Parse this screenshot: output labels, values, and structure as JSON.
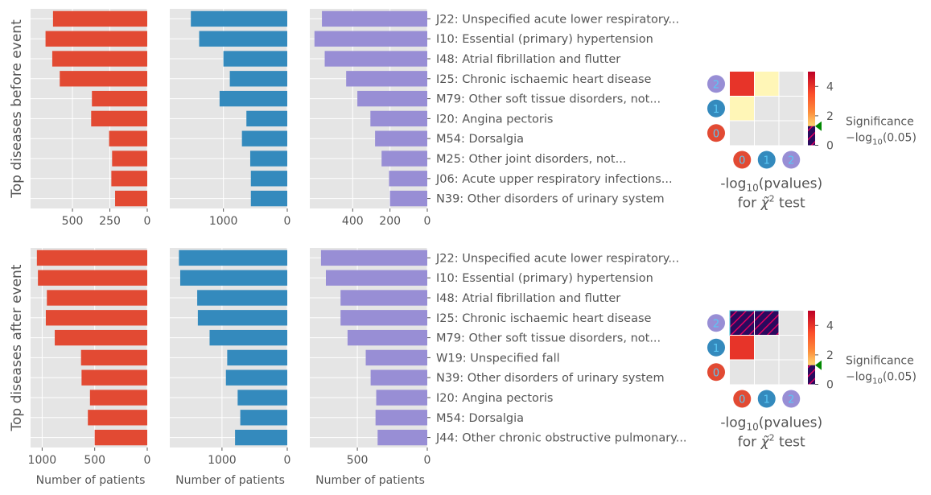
{
  "colors": {
    "cluster_0": "#E24A33",
    "cluster_1": "#348ABD",
    "cluster_2": "#988ED5",
    "panel_bg": "#E5E5E5",
    "grid": "#FFFFFF",
    "text": "#555555",
    "hatch": "#2A0A5E",
    "hatch_line": "#E00060",
    "marker": "#008800"
  },
  "figure": {
    "row_titles": [
      "Top diseases before event",
      "Top diseases after event"
    ],
    "xlabel": "Number of patients",
    "heatmap_title_line1": "-log",
    "heatmap_title_sub": "10",
    "heatmap_title_tail": "(pvalues)",
    "heatmap_title_line2_pre": "for ",
    "heatmap_title_line2_sym": "χ̃",
    "heatmap_title_line2_sup": "2",
    "heatmap_title_line2_post": " test",
    "significance_label": "Significance",
    "significance_formula_pre": "−log",
    "significance_formula_sub": "10",
    "significance_formula_post": "(0.05)"
  },
  "chart_data": [
    {
      "type": "bar",
      "orientation": "horizontal",
      "title": "",
      "ylabel": "Top diseases before event",
      "categories": [
        "J22: Unspecified acute lower respiratory...",
        "I10: Essential (primary) hypertension",
        "I48: Atrial fibrillation and flutter",
        "I25: Chronic ischaemic heart disease",
        "M79: Other soft tissue disorders, not...",
        "I20: Angina pectoris",
        "M54: Dorsalgia",
        "M25: Other joint disorders, not...",
        "J06: Acute upper respiratory infections...",
        "N39: Other disorders of urinary system"
      ],
      "series": [
        {
          "cluster": 0,
          "values": [
            630,
            680,
            635,
            585,
            370,
            375,
            255,
            235,
            240,
            215
          ],
          "xlim": [
            780,
            0
          ],
          "ticks": [
            500,
            250,
            0
          ]
        },
        {
          "cluster": 1,
          "values": [
            1510,
            1380,
            1000,
            900,
            1060,
            640,
            710,
            580,
            570,
            570
          ],
          "xlim": [
            1840,
            0
          ],
          "ticks": [
            1000,
            0
          ]
        },
        {
          "cluster": 2,
          "values": [
            565,
            605,
            550,
            435,
            375,
            305,
            280,
            245,
            205,
            200
          ],
          "xlim": [
            630,
            0
          ],
          "ticks": [
            400,
            200,
            0
          ]
        }
      ],
      "grid": true
    },
    {
      "type": "bar",
      "orientation": "horizontal",
      "title": "",
      "ylabel": "Top diseases after event",
      "xlabel": "Number of patients",
      "categories": [
        "J22: Unspecified acute lower respiratory...",
        "I10: Essential (primary) hypertension",
        "I48: Atrial fibrillation and flutter",
        "I25: Chronic ischaemic heart disease",
        "M79: Other soft tissue disorders, not...",
        "W19: Unspecified fall",
        "N39: Other disorders of urinary system",
        "I20: Angina pectoris",
        "M54: Dorsalgia",
        "J44: Other chronic obstructive pulmonary..."
      ],
      "series": [
        {
          "cluster": 0,
          "values": [
            1050,
            1040,
            955,
            965,
            880,
            630,
            625,
            545,
            565,
            500
          ],
          "xlim": [
            1110,
            0
          ],
          "ticks": [
            1000,
            500,
            0
          ]
        },
        {
          "cluster": 1,
          "values": [
            1660,
            1640,
            1380,
            1370,
            1190,
            920,
            940,
            760,
            720,
            800
          ],
          "xlim": [
            1800,
            0
          ],
          "ticks": [
            1000,
            0
          ]
        },
        {
          "cluster": 2,
          "values": [
            760,
            725,
            620,
            620,
            570,
            440,
            405,
            365,
            370,
            355
          ],
          "xlim": [
            840,
            0
          ],
          "ticks": [
            500,
            0
          ]
        }
      ],
      "grid": true
    },
    {
      "type": "heatmap",
      "title": "-log10(pvalues) for χ̃2 test",
      "x_categories": [
        "0",
        "1",
        "2"
      ],
      "y_categories": [
        "0",
        "1",
        "2"
      ],
      "cells": [
        {
          "row": "2",
          "col": "0",
          "value": 4.0
        },
        {
          "row": "2",
          "col": "1",
          "value": 0.3
        },
        {
          "row": "1",
          "col": "0",
          "value": 0.3
        }
      ],
      "colorbar": {
        "range": [
          0,
          5
        ],
        "ticks": [
          0,
          2,
          4
        ],
        "significance_threshold": 1.3
      }
    },
    {
      "type": "heatmap",
      "title": "-log10(pvalues) for χ̃2 test",
      "x_categories": [
        "0",
        "1",
        "2"
      ],
      "y_categories": [
        "0",
        "1",
        "2"
      ],
      "cells": [
        {
          "row": "2",
          "col": "0",
          "value": 0.5,
          "hatched": true
        },
        {
          "row": "2",
          "col": "1",
          "value": 0.5,
          "hatched": true
        },
        {
          "row": "1",
          "col": "0",
          "value": 4.0
        }
      ],
      "colorbar": {
        "range": [
          0,
          5
        ],
        "ticks": [
          0,
          2,
          4
        ],
        "significance_threshold": 1.3
      }
    }
  ]
}
